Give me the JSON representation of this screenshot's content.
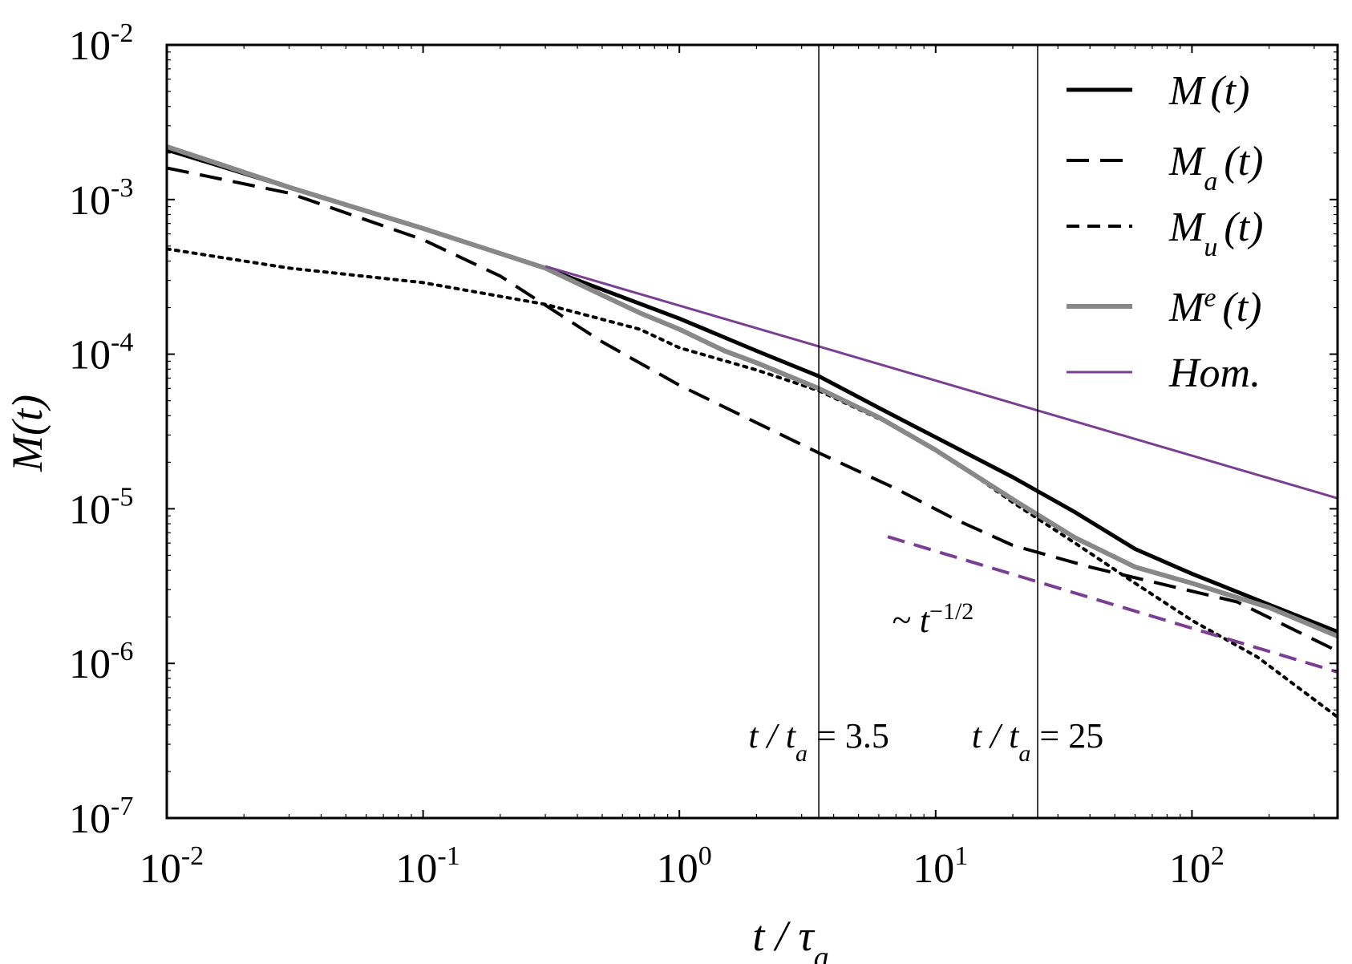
{
  "chart_data": {
    "type": "line",
    "xscale": "log",
    "yscale": "log",
    "xlim": [
      0.01,
      370
    ],
    "ylim": [
      1e-07,
      0.01
    ],
    "xlabel": {
      "base": "t / τ",
      "sub": "a"
    },
    "ylabel": "M(t)",
    "x_ticks": [
      {
        "value": 0.01,
        "base": "10",
        "exp": "-2"
      },
      {
        "value": 0.1,
        "base": "10",
        "exp": "-1"
      },
      {
        "value": 1,
        "base": "10",
        "exp": "0"
      },
      {
        "value": 10,
        "base": "10",
        "exp": "1"
      },
      {
        "value": 100,
        "base": "10",
        "exp": "2"
      }
    ],
    "y_ticks": [
      {
        "value": 0.01,
        "base": "10",
        "exp": "-2"
      },
      {
        "value": 0.001,
        "base": "10",
        "exp": "-3"
      },
      {
        "value": 0.0001,
        "base": "10",
        "exp": "-4"
      },
      {
        "value": 1e-05,
        "base": "10",
        "exp": "-5"
      },
      {
        "value": 1e-06,
        "base": "10",
        "exp": "-6"
      },
      {
        "value": 1e-07,
        "base": "10",
        "exp": "-7"
      }
    ],
    "grid": false,
    "legend_position": "top-right",
    "series": [
      {
        "name": "M(t)",
        "legend": {
          "base": "M",
          "sub": "",
          "sup": "",
          "tail": "(t)"
        },
        "style": "solid",
        "color": "#000000",
        "width": 5,
        "x": [
          0.01,
          0.03,
          0.1,
          0.3,
          1,
          2,
          3.5,
          6,
          10,
          20,
          35,
          60,
          100,
          200,
          370
        ],
        "y": [
          0.0021,
          0.0012,
          0.00065,
          0.00036,
          0.00017,
          0.000105,
          7.2e-05,
          4.5e-05,
          2.9e-05,
          1.6e-05,
          9.5e-06,
          5.5e-06,
          3.8e-06,
          2.4e-06,
          1.6e-06
        ]
      },
      {
        "name": "Ma(t)",
        "legend": {
          "base": "M",
          "sub": "a",
          "sup": "",
          "tail": "(t)"
        },
        "style": "longdash",
        "color": "#000000",
        "width": 4,
        "x": [
          0.01,
          0.03,
          0.1,
          0.2,
          0.5,
          1,
          2,
          3.5,
          7,
          12,
          20,
          40,
          80,
          150,
          370
        ],
        "y": [
          0.0016,
          0.0011,
          0.00055,
          0.00032,
          0.00012,
          6.3e-05,
          3.6e-05,
          2.3e-05,
          1.35e-05,
          8.5e-06,
          5.8e-06,
          4.2e-06,
          3.2e-06,
          2.5e-06,
          1.2e-06
        ]
      },
      {
        "name": "Mu(t)",
        "legend": {
          "base": "M",
          "sub": "u",
          "sup": "",
          "tail": "(t)"
        },
        "style": "dotted",
        "color": "#000000",
        "width": 4,
        "x": [
          0.01,
          0.03,
          0.1,
          0.3,
          0.7,
          1,
          2,
          3.5,
          7,
          12,
          20,
          35,
          60,
          100,
          180,
          370
        ],
        "y": [
          0.00048,
          0.00036,
          0.00029,
          0.00021,
          0.000145,
          0.00011,
          7.9e-05,
          5.8e-05,
          3.4e-05,
          2e-05,
          1.1e-05,
          6e-06,
          3.3e-06,
          1.9e-06,
          1.1e-06,
          4.5e-07
        ]
      },
      {
        "name": "Me(t)",
        "legend": {
          "base": "M",
          "sub": "",
          "sup": "e",
          "tail": "(t)"
        },
        "style": "solid",
        "color": "#888888",
        "width": 6,
        "x": [
          0.01,
          0.03,
          0.1,
          0.3,
          0.7,
          1,
          1.5,
          2,
          3.5,
          6,
          10,
          20,
          35,
          60,
          100,
          200,
          370
        ],
        "y": [
          0.0022,
          0.0012,
          0.00065,
          0.00036,
          0.000185,
          0.000145,
          0.000105,
          8.8e-05,
          6e-05,
          3.9e-05,
          2.4e-05,
          1.15e-05,
          6.5e-06,
          4.2e-06,
          3.3e-06,
          2.3e-06,
          1.5e-06
        ]
      },
      {
        "name": "Hom.",
        "legend": {
          "base": "Hom.",
          "sub": "",
          "sup": "",
          "tail": ""
        },
        "style": "solid",
        "color": "#7a3f93",
        "width": 3,
        "x": [
          0.3,
          370
        ],
        "y": [
          0.00037,
          1.17e-05
        ]
      }
    ],
    "annotations": {
      "vlines": [
        {
          "x": 3.5,
          "label_pre": "t / t",
          "label_sub": "a",
          "label_post": " = 3.5"
        },
        {
          "x": 25,
          "label_pre": "t / t",
          "label_sub": "a",
          "label_post": " = 25"
        }
      ],
      "slope_line": {
        "color": "#7a3f93",
        "x": [
          6.5,
          370
        ],
        "y": [
          6.6e-06,
          8.8e-07
        ],
        "label_pre": "~ t",
        "label_sup": "−1/2"
      }
    }
  }
}
